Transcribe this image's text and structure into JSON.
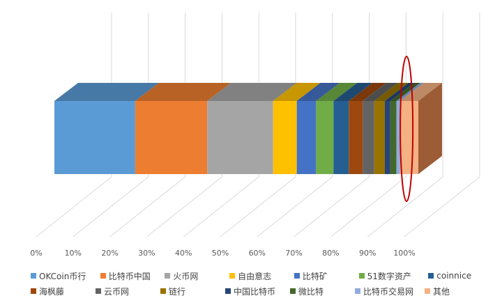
{
  "chart_data": {
    "type": "bar",
    "stacked": true,
    "percent": true,
    "orientation": "horizontal",
    "three_d": true,
    "title": "",
    "xlabel": "",
    "ylabel": "",
    "xlim": [
      0,
      100
    ],
    "x_ticks": [
      "0%",
      "10%",
      "20%",
      "30%",
      "40%",
      "50%",
      "60%",
      "70%",
      "80%",
      "90%",
      "100%"
    ],
    "grid": true,
    "legend_position": "bottom",
    "series": [
      {
        "name": "OKCoin币行",
        "value": 22.2,
        "color": "#5B9BD5"
      },
      {
        "name": "比特币中国",
        "value": 19.8,
        "color": "#ED7D31"
      },
      {
        "name": "火币网",
        "value": 18.1,
        "color": "#A5A5A5"
      },
      {
        "name": "自由意志",
        "value": 6.5,
        "color": "#FFC000"
      },
      {
        "name": "比特矿",
        "value": 5.3,
        "color": "#4472C4"
      },
      {
        "name": "51数字资产",
        "value": 4.8,
        "color": "#70AD47"
      },
      {
        "name": "coinnice",
        "value": 4.2,
        "color": "#255E91"
      },
      {
        "name": "海枫藤",
        "value": 3.8,
        "color": "#9E480E"
      },
      {
        "name": "云币网",
        "value": 3.2,
        "color": "#636363"
      },
      {
        "name": "链行",
        "value": 2.9,
        "color": "#997300"
      },
      {
        "name": "中国比特币",
        "value": 1.5,
        "color": "#264478"
      },
      {
        "name": "微比特",
        "value": 1.7,
        "color": "#43682B"
      },
      {
        "name": "比特币交易网",
        "value": 1.0,
        "color": "#8FAADC"
      },
      {
        "name": "其他",
        "value": 5.0,
        "color": "#F4B183"
      }
    ],
    "annotation": {
      "shape": "ellipse",
      "color": "#C00000",
      "around_value": 96
    }
  }
}
